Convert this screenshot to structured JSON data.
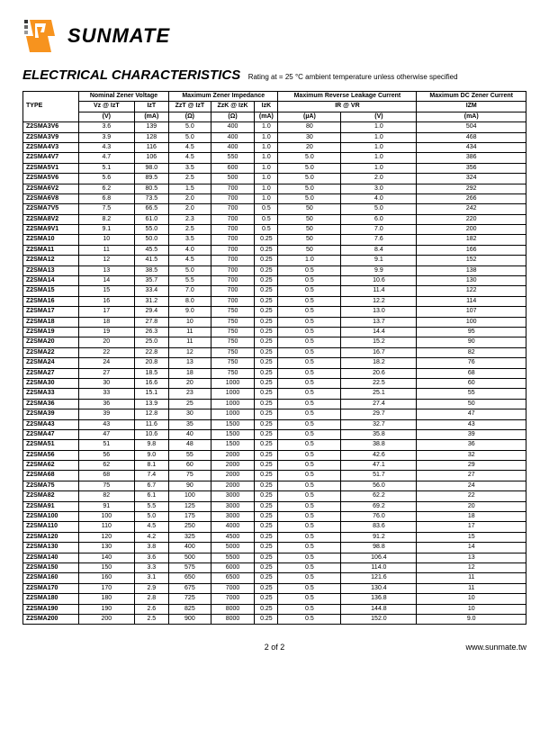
{
  "logo_text": "SUNMATE",
  "title": "ELECTRICAL CHARACTERISTICS",
  "subtitle": "Rating at = 25 °C ambient temperature unless otherwise specified",
  "header_groups": {
    "type": "TYPE",
    "nominal_zener": "Nominal Zener Voltage",
    "max_imp": "Maximum Zener Impedance",
    "max_rev": "Maximum Reverse Leakage Current",
    "max_dc": "Maximum DC Zener Current"
  },
  "header_labels": {
    "vz": "Vz @ IzT",
    "izt": "IzT",
    "zzt": "ZzT @ IzT",
    "zzk": "ZzK @ IzK",
    "izk": "IzK",
    "ir": "IR @ VR",
    "izm": "IZM"
  },
  "header_units": {
    "vz": "(V)",
    "izt": "(mA)",
    "zzt": "(Ω)",
    "zzk": "(Ω)",
    "izk": "(mA)",
    "ir": "(µA)",
    "vr": "(V)",
    "izm": "(mA)"
  },
  "rows": [
    {
      "type": "Z2SMA3V6",
      "vz": "3.6",
      "izt": "139",
      "zzt": "5.0",
      "zzk": "400",
      "izk": "1.0",
      "ir": "80",
      "vr": "1.0",
      "izm": "504"
    },
    {
      "type": "Z2SMA3V9",
      "vz": "3.9",
      "izt": "128",
      "zzt": "5.0",
      "zzk": "400",
      "izk": "1.0",
      "ir": "30",
      "vr": "1.0",
      "izm": "468"
    },
    {
      "type": "Z2SMA4V3",
      "vz": "4.3",
      "izt": "116",
      "zzt": "4.5",
      "zzk": "400",
      "izk": "1.0",
      "ir": "20",
      "vr": "1.0",
      "izm": "434"
    },
    {
      "type": "Z2SMA4V7",
      "vz": "4.7",
      "izt": "106",
      "zzt": "4.5",
      "zzk": "550",
      "izk": "1.0",
      "ir": "5.0",
      "vr": "1.0",
      "izm": "386"
    },
    {
      "type": "Z2SMA5V1",
      "vz": "5.1",
      "izt": "98.0",
      "zzt": "3.5",
      "zzk": "600",
      "izk": "1.0",
      "ir": "5.0",
      "vr": "1.0",
      "izm": "356"
    },
    {
      "type": "Z2SMA5V6",
      "vz": "5.6",
      "izt": "89.5",
      "zzt": "2.5",
      "zzk": "500",
      "izk": "1.0",
      "ir": "5.0",
      "vr": "2.0",
      "izm": "324"
    },
    {
      "type": "Z2SMA6V2",
      "vz": "6.2",
      "izt": "80.5",
      "zzt": "1.5",
      "zzk": "700",
      "izk": "1.0",
      "ir": "5.0",
      "vr": "3.0",
      "izm": "292"
    },
    {
      "type": "Z2SMA6V8",
      "vz": "6.8",
      "izt": "73.5",
      "zzt": "2.0",
      "zzk": "700",
      "izk": "1.0",
      "ir": "5.0",
      "vr": "4.0",
      "izm": "266"
    },
    {
      "type": "Z2SMA7V5",
      "vz": "7.5",
      "izt": "66.5",
      "zzt": "2.0",
      "zzk": "700",
      "izk": "0.5",
      "ir": "50",
      "vr": "5.0",
      "izm": "242"
    },
    {
      "type": "Z2SMA8V2",
      "vz": "8.2",
      "izt": "61.0",
      "zzt": "2.3",
      "zzk": "700",
      "izk": "0.5",
      "ir": "50",
      "vr": "6.0",
      "izm": "220"
    },
    {
      "type": "Z2SMA9V1",
      "vz": "9.1",
      "izt": "55.0",
      "zzt": "2.5",
      "zzk": "700",
      "izk": "0.5",
      "ir": "50",
      "vr": "7.0",
      "izm": "200"
    },
    {
      "type": "Z2SMA10",
      "vz": "10",
      "izt": "50.0",
      "zzt": "3.5",
      "zzk": "700",
      "izk": "0.25",
      "ir": "50",
      "vr": "7.6",
      "izm": "182"
    },
    {
      "type": "Z2SMA11",
      "vz": "11",
      "izt": "45.5",
      "zzt": "4.0",
      "zzk": "700",
      "izk": "0.25",
      "ir": "50",
      "vr": "8.4",
      "izm": "166"
    },
    {
      "type": "Z2SMA12",
      "vz": "12",
      "izt": "41.5",
      "zzt": "4.5",
      "zzk": "700",
      "izk": "0.25",
      "ir": "1.0",
      "vr": "9.1",
      "izm": "152"
    },
    {
      "type": "Z2SMA13",
      "vz": "13",
      "izt": "38.5",
      "zzt": "5.0",
      "zzk": "700",
      "izk": "0.25",
      "ir": "0.5",
      "vr": "9.9",
      "izm": "138"
    },
    {
      "type": "Z2SMA14",
      "vz": "14",
      "izt": "35.7",
      "zzt": "5.5",
      "zzk": "700",
      "izk": "0.25",
      "ir": "0.5",
      "vr": "10.6",
      "izm": "130"
    },
    {
      "type": "Z2SMA15",
      "vz": "15",
      "izt": "33.4",
      "zzt": "7.0",
      "zzk": "700",
      "izk": "0.25",
      "ir": "0.5",
      "vr": "11.4",
      "izm": "122"
    },
    {
      "type": "Z2SMA16",
      "vz": "16",
      "izt": "31.2",
      "zzt": "8.0",
      "zzk": "700",
      "izk": "0.25",
      "ir": "0.5",
      "vr": "12.2",
      "izm": "114"
    },
    {
      "type": "Z2SMA17",
      "vz": "17",
      "izt": "29.4",
      "zzt": "9.0",
      "zzk": "750",
      "izk": "0.25",
      "ir": "0.5",
      "vr": "13.0",
      "izm": "107"
    },
    {
      "type": "Z2SMA18",
      "vz": "18",
      "izt": "27.8",
      "zzt": "10",
      "zzk": "750",
      "izk": "0.25",
      "ir": "0.5",
      "vr": "13.7",
      "izm": "100"
    },
    {
      "type": "Z2SMA19",
      "vz": "19",
      "izt": "26.3",
      "zzt": "11",
      "zzk": "750",
      "izk": "0.25",
      "ir": "0.5",
      "vr": "14.4",
      "izm": "95"
    },
    {
      "type": "Z2SMA20",
      "vz": "20",
      "izt": "25.0",
      "zzt": "11",
      "zzk": "750",
      "izk": "0.25",
      "ir": "0.5",
      "vr": "15.2",
      "izm": "90"
    },
    {
      "type": "Z2SMA22",
      "vz": "22",
      "izt": "22.8",
      "zzt": "12",
      "zzk": "750",
      "izk": "0.25",
      "ir": "0.5",
      "vr": "16.7",
      "izm": "82"
    },
    {
      "type": "Z2SMA24",
      "vz": "24",
      "izt": "20.8",
      "zzt": "13",
      "zzk": "750",
      "izk": "0.25",
      "ir": "0.5",
      "vr": "18.2",
      "izm": "76"
    },
    {
      "type": "Z2SMA27",
      "vz": "27",
      "izt": "18.5",
      "zzt": "18",
      "zzk": "750",
      "izk": "0.25",
      "ir": "0.5",
      "vr": "20.6",
      "izm": "68"
    },
    {
      "type": "Z2SMA30",
      "vz": "30",
      "izt": "16.6",
      "zzt": "20",
      "zzk": "1000",
      "izk": "0.25",
      "ir": "0.5",
      "vr": "22.5",
      "izm": "60"
    },
    {
      "type": "Z2SMA33",
      "vz": "33",
      "izt": "15.1",
      "zzt": "23",
      "zzk": "1000",
      "izk": "0.25",
      "ir": "0.5",
      "vr": "25.1",
      "izm": "55"
    },
    {
      "type": "Z2SMA36",
      "vz": "36",
      "izt": "13.9",
      "zzt": "25",
      "zzk": "1000",
      "izk": "0.25",
      "ir": "0.5",
      "vr": "27.4",
      "izm": "50"
    },
    {
      "type": "Z2SMA39",
      "vz": "39",
      "izt": "12.8",
      "zzt": "30",
      "zzk": "1000",
      "izk": "0.25",
      "ir": "0.5",
      "vr": "29.7",
      "izm": "47"
    },
    {
      "type": "Z2SMA43",
      "vz": "43",
      "izt": "11.6",
      "zzt": "35",
      "zzk": "1500",
      "izk": "0.25",
      "ir": "0.5",
      "vr": "32.7",
      "izm": "43"
    },
    {
      "type": "Z2SMA47",
      "vz": "47",
      "izt": "10.6",
      "zzt": "40",
      "zzk": "1500",
      "izk": "0.25",
      "ir": "0.5",
      "vr": "35.8",
      "izm": "39"
    },
    {
      "type": "Z2SMA51",
      "vz": "51",
      "izt": "9.8",
      "zzt": "48",
      "zzk": "1500",
      "izk": "0.25",
      "ir": "0.5",
      "vr": "38.8",
      "izm": "36"
    },
    {
      "type": "Z2SMA56",
      "vz": "56",
      "izt": "9.0",
      "zzt": "55",
      "zzk": "2000",
      "izk": "0.25",
      "ir": "0.5",
      "vr": "42.6",
      "izm": "32"
    },
    {
      "type": "Z2SMA62",
      "vz": "62",
      "izt": "8.1",
      "zzt": "60",
      "zzk": "2000",
      "izk": "0.25",
      "ir": "0.5",
      "vr": "47.1",
      "izm": "29"
    },
    {
      "type": "Z2SMA68",
      "vz": "68",
      "izt": "7.4",
      "zzt": "75",
      "zzk": "2000",
      "izk": "0.25",
      "ir": "0.5",
      "vr": "51.7",
      "izm": "27"
    },
    {
      "type": "Z2SMA75",
      "vz": "75",
      "izt": "6.7",
      "zzt": "90",
      "zzk": "2000",
      "izk": "0.25",
      "ir": "0.5",
      "vr": "56.0",
      "izm": "24"
    },
    {
      "type": "Z2SMA82",
      "vz": "82",
      "izt": "6.1",
      "zzt": "100",
      "zzk": "3000",
      "izk": "0.25",
      "ir": "0.5",
      "vr": "62.2",
      "izm": "22"
    },
    {
      "type": "Z2SMA91",
      "vz": "91",
      "izt": "5.5",
      "zzt": "125",
      "zzk": "3000",
      "izk": "0.25",
      "ir": "0.5",
      "vr": "69.2",
      "izm": "20"
    },
    {
      "type": "Z2SMA100",
      "vz": "100",
      "izt": "5.0",
      "zzt": "175",
      "zzk": "3000",
      "izk": "0.25",
      "ir": "0.5",
      "vr": "76.0",
      "izm": "18"
    },
    {
      "type": "Z2SMA110",
      "vz": "110",
      "izt": "4.5",
      "zzt": "250",
      "zzk": "4000",
      "izk": "0.25",
      "ir": "0.5",
      "vr": "83.6",
      "izm": "17"
    },
    {
      "type": "Z2SMA120",
      "vz": "120",
      "izt": "4.2",
      "zzt": "325",
      "zzk": "4500",
      "izk": "0.25",
      "ir": "0.5",
      "vr": "91.2",
      "izm": "15"
    },
    {
      "type": "Z2SMA130",
      "vz": "130",
      "izt": "3.8",
      "zzt": "400",
      "zzk": "5000",
      "izk": "0.25",
      "ir": "0.5",
      "vr": "98.8",
      "izm": "14"
    },
    {
      "type": "Z2SMA140",
      "vz": "140",
      "izt": "3.6",
      "zzt": "500",
      "zzk": "5500",
      "izk": "0.25",
      "ir": "0.5",
      "vr": "106.4",
      "izm": "13"
    },
    {
      "type": "Z2SMA150",
      "vz": "150",
      "izt": "3.3",
      "zzt": "575",
      "zzk": "6000",
      "izk": "0.25",
      "ir": "0.5",
      "vr": "114.0",
      "izm": "12"
    },
    {
      "type": "Z2SMA160",
      "vz": "160",
      "izt": "3.1",
      "zzt": "650",
      "zzk": "6500",
      "izk": "0.25",
      "ir": "0.5",
      "vr": "121.6",
      "izm": "11"
    },
    {
      "type": "Z2SMA170",
      "vz": "170",
      "izt": "2.9",
      "zzt": "675",
      "zzk": "7000",
      "izk": "0.25",
      "ir": "0.5",
      "vr": "130.4",
      "izm": "11"
    },
    {
      "type": "Z2SMA180",
      "vz": "180",
      "izt": "2.8",
      "zzt": "725",
      "zzk": "7000",
      "izk": "0.25",
      "ir": "0.5",
      "vr": "136.8",
      "izm": "10"
    },
    {
      "type": "Z2SMA190",
      "vz": "190",
      "izt": "2.6",
      "zzt": "825",
      "zzk": "8000",
      "izk": "0.25",
      "ir": "0.5",
      "vr": "144.8",
      "izm": "10"
    },
    {
      "type": "Z2SMA200",
      "vz": "200",
      "izt": "2.5",
      "zzt": "900",
      "zzk": "8000",
      "izk": "0.25",
      "ir": "0.5",
      "vr": "152.0",
      "izm": "9.0"
    }
  ],
  "footer": {
    "page": "2 of 2",
    "website": "www.sunmate.tw"
  }
}
